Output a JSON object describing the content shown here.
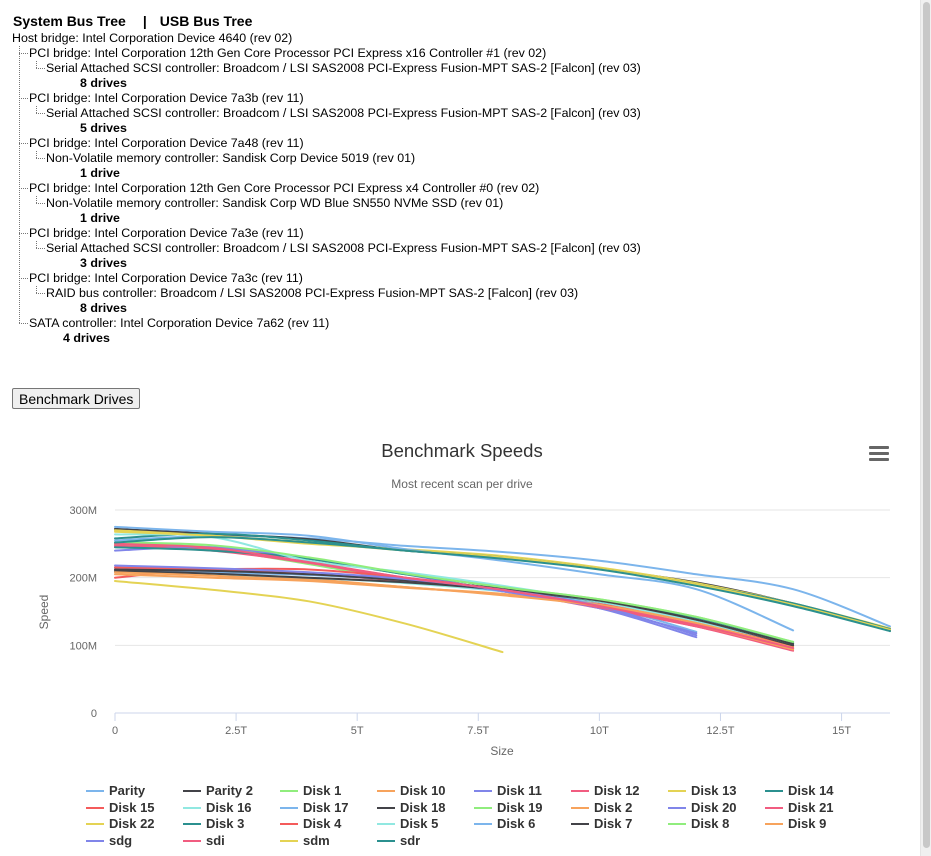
{
  "header": {
    "system_tab": "System Bus Tree",
    "separator": "|",
    "usb_tab": "USB Bus Tree"
  },
  "tree": [
    {
      "depth": 0,
      "type": "node",
      "text": "Host bridge: Intel Corporation Device 4640 (rev 02)"
    },
    {
      "depth": 1,
      "type": "node",
      "text": "PCI bridge: Intel Corporation 12th Gen Core Processor PCI Express x16 Controller #1 (rev 02)"
    },
    {
      "depth": 2,
      "type": "node",
      "text": "Serial Attached SCSI controller: Broadcom / LSI SAS2008 PCI-Express Fusion-MPT SAS-2 [Falcon] (rev 03)"
    },
    {
      "depth": 3,
      "type": "drives",
      "text": "8 drives"
    },
    {
      "depth": 1,
      "type": "node",
      "text": "PCI bridge: Intel Corporation Device 7a3b (rev 11)"
    },
    {
      "depth": 2,
      "type": "node",
      "text": "Serial Attached SCSI controller: Broadcom / LSI SAS2008 PCI-Express Fusion-MPT SAS-2 [Falcon] (rev 03)"
    },
    {
      "depth": 3,
      "type": "drives",
      "text": "5 drives"
    },
    {
      "depth": 1,
      "type": "node",
      "text": "PCI bridge: Intel Corporation Device 7a48 (rev 11)"
    },
    {
      "depth": 2,
      "type": "node",
      "text": "Non-Volatile memory controller: Sandisk Corp Device 5019 (rev 01)"
    },
    {
      "depth": 3,
      "type": "drives",
      "text": "1 drive"
    },
    {
      "depth": 1,
      "type": "node",
      "text": "PCI bridge: Intel Corporation 12th Gen Core Processor PCI Express x4 Controller #0 (rev 02)"
    },
    {
      "depth": 2,
      "type": "node",
      "text": "Non-Volatile memory controller: Sandisk Corp WD Blue SN550 NVMe SSD (rev 01)"
    },
    {
      "depth": 3,
      "type": "drives",
      "text": "1 drive"
    },
    {
      "depth": 1,
      "type": "node",
      "text": "PCI bridge: Intel Corporation Device 7a3e (rev 11)"
    },
    {
      "depth": 2,
      "type": "node",
      "text": "Serial Attached SCSI controller: Broadcom / LSI SAS2008 PCI-Express Fusion-MPT SAS-2 [Falcon] (rev 03)"
    },
    {
      "depth": 3,
      "type": "drives",
      "text": "3 drives"
    },
    {
      "depth": 1,
      "type": "node",
      "text": "PCI bridge: Intel Corporation Device 7a3c (rev 11)"
    },
    {
      "depth": 2,
      "type": "node",
      "text": "RAID bus controller: Broadcom / LSI SAS2008 PCI-Express Fusion-MPT SAS-2 [Falcon] (rev 03)"
    },
    {
      "depth": 3,
      "type": "drives",
      "text": "8 drives"
    },
    {
      "depth": 1,
      "type": "node",
      "text": "SATA controller: Intel Corporation Device 7a62 (rev 11)"
    },
    {
      "depth": 2,
      "type": "drives",
      "text": "4 drives"
    }
  ],
  "button": {
    "label": "Benchmark Drives"
  },
  "chart_data": {
    "type": "line",
    "title": "Benchmark Speeds",
    "subtitle": "Most recent scan per drive",
    "xlabel": "Size",
    "ylabel": "Speed",
    "xlim": [
      0,
      16
    ],
    "ylim": [
      0,
      300
    ],
    "xticks": [
      {
        "v": 0,
        "label": "0"
      },
      {
        "v": 2.5,
        "label": "2.5T"
      },
      {
        "v": 5,
        "label": "5T"
      },
      {
        "v": 7.5,
        "label": "7.5T"
      },
      {
        "v": 10,
        "label": "10T"
      },
      {
        "v": 12.5,
        "label": "12.5T"
      },
      {
        "v": 15,
        "label": "15T"
      }
    ],
    "yticks": [
      {
        "v": 0,
        "label": "0"
      },
      {
        "v": 100,
        "label": "100M"
      },
      {
        "v": 200,
        "label": "200M"
      },
      {
        "v": 300,
        "label": "300M"
      }
    ],
    "grid": "horizontal",
    "legend_position": "bottom",
    "series": [
      {
        "name": "Parity",
        "color": "#7cb5ec",
        "x": [
          0,
          2,
          4,
          6,
          8,
          10,
          12,
          14,
          16
        ],
        "y": [
          255,
          262,
          258,
          247,
          238,
          225,
          205,
          183,
          128
        ]
      },
      {
        "name": "Parity 2",
        "color": "#434348",
        "x": [
          0,
          2,
          4,
          6,
          8,
          10,
          12,
          14,
          16
        ],
        "y": [
          272,
          265,
          257,
          240,
          230,
          213,
          193,
          162,
          122
        ]
      },
      {
        "name": "Disk 1",
        "color": "#90ed7d",
        "x": [
          0,
          2,
          4,
          6,
          8,
          10,
          12,
          14
        ],
        "y": [
          250,
          242,
          220,
          196,
          182,
          162,
          140,
          105
        ]
      },
      {
        "name": "Disk 10",
        "color": "#f7a35c",
        "x": [
          0,
          2,
          4,
          6,
          8,
          10,
          12,
          14
        ],
        "y": [
          212,
          205,
          198,
          186,
          175,
          160,
          135,
          98
        ]
      },
      {
        "name": "Disk 11",
        "color": "#8085e9",
        "x": [
          0,
          2,
          4,
          6,
          8,
          10,
          12
        ],
        "y": [
          215,
          212,
          205,
          196,
          180,
          155,
          112
        ]
      },
      {
        "name": "Disk 12",
        "color": "#f15c80",
        "x": [
          0,
          2,
          4,
          6,
          8,
          10,
          12,
          14
        ],
        "y": [
          248,
          243,
          222,
          198,
          180,
          155,
          128,
          95
        ]
      },
      {
        "name": "Disk 13",
        "color": "#e4d354",
        "x": [
          0,
          2,
          4,
          6,
          8,
          10,
          12,
          14,
          16
        ],
        "y": [
          270,
          262,
          250,
          242,
          232,
          215,
          192,
          162,
          125
        ]
      },
      {
        "name": "Disk 14",
        "color": "#2b908f",
        "x": [
          0,
          2,
          4,
          6,
          8,
          10,
          12,
          14,
          16
        ],
        "y": [
          258,
          265,
          255,
          240,
          230,
          213,
          190,
          162,
          124
        ]
      },
      {
        "name": "Disk 15",
        "color": "#f45b5b",
        "x": [
          0,
          2,
          4,
          6,
          8,
          10,
          12,
          14
        ],
        "y": [
          200,
          212,
          205,
          195,
          183,
          162,
          135,
          100
        ]
      },
      {
        "name": "Disk 16",
        "color": "#91e8e1",
        "x": [
          0,
          2,
          4,
          6,
          8,
          10,
          12,
          14
        ],
        "y": [
          208,
          205,
          200,
          192,
          180,
          164,
          135,
          102
        ]
      },
      {
        "name": "Disk 17",
        "color": "#7cb5ec",
        "x": [
          0,
          2,
          4,
          6,
          8,
          10,
          12
        ],
        "y": [
          212,
          208,
          204,
          196,
          180,
          160,
          120
        ]
      },
      {
        "name": "Disk 18",
        "color": "#434348",
        "x": [
          0,
          2,
          4,
          6,
          8,
          10,
          12,
          14
        ],
        "y": [
          210,
          206,
          200,
          193,
          182,
          165,
          138,
          100
        ]
      },
      {
        "name": "Disk 19",
        "color": "#90ed7d",
        "x": [
          0,
          2,
          4,
          6,
          8,
          10,
          12,
          14
        ],
        "y": [
          250,
          245,
          228,
          205,
          186,
          168,
          142,
          104
        ]
      },
      {
        "name": "Disk 2",
        "color": "#f7a35c",
        "x": [
          0,
          2,
          4,
          6,
          8,
          10,
          12,
          14
        ],
        "y": [
          205,
          200,
          195,
          185,
          176,
          160,
          133,
          96
        ]
      },
      {
        "name": "Disk 20",
        "color": "#8085e9",
        "x": [
          0,
          2,
          4,
          6,
          8,
          10,
          12
        ],
        "y": [
          240,
          245,
          228,
          205,
          180,
          155,
          118
        ]
      },
      {
        "name": "Disk 21",
        "color": "#f15c80",
        "x": [
          0,
          2,
          4,
          6,
          8,
          10,
          12,
          14
        ],
        "y": [
          246,
          240,
          222,
          200,
          182,
          156,
          128,
          92
        ]
      },
      {
        "name": "Disk 22",
        "color": "#e4d354",
        "x": [
          0,
          2,
          4,
          6,
          8
        ],
        "y": [
          195,
          182,
          165,
          132,
          90
        ]
      },
      {
        "name": "Disk 3",
        "color": "#2b908f",
        "x": [
          0,
          2,
          4,
          6,
          8,
          10,
          12,
          14
        ],
        "y": [
          245,
          240,
          228,
          205,
          186,
          165,
          140,
          103
        ]
      },
      {
        "name": "Disk 4",
        "color": "#f45b5b",
        "x": [
          0,
          2,
          4,
          6,
          8,
          10,
          12,
          14
        ],
        "y": [
          215,
          213,
          212,
          200,
          182,
          158,
          130,
          95
        ]
      },
      {
        "name": "Disk 5",
        "color": "#91e8e1",
        "x": [
          0,
          2,
          4,
          6,
          8,
          10,
          12,
          14
        ],
        "y": [
          264,
          260,
          225,
          208,
          188,
          165,
          138,
          102
        ]
      },
      {
        "name": "Disk 6",
        "color": "#7cb5ec",
        "x": [
          0,
          2,
          4,
          6,
          8,
          10,
          12,
          14
        ],
        "y": [
          275,
          268,
          262,
          242,
          225,
          205,
          183,
          122
        ]
      },
      {
        "name": "Disk 7",
        "color": "#434348",
        "x": [
          0,
          2,
          4,
          6,
          8,
          10,
          12,
          14
        ],
        "y": [
          212,
          210,
          205,
          196,
          184,
          166,
          138,
          102
        ]
      },
      {
        "name": "Disk 8",
        "color": "#90ed7d",
        "x": [
          0,
          2,
          4,
          6,
          8,
          10,
          12,
          14
        ],
        "y": [
          252,
          248,
          230,
          206,
          186,
          168,
          142,
          105
        ]
      },
      {
        "name": "Disk 9",
        "color": "#f7a35c",
        "x": [
          0,
          2,
          4,
          6,
          8,
          10,
          12,
          14
        ],
        "y": [
          208,
          203,
          196,
          186,
          174,
          158,
          130,
          94
        ]
      },
      {
        "name": "sdg",
        "color": "#8085e9",
        "x": [
          0,
          2,
          4,
          6,
          8,
          10,
          12
        ],
        "y": [
          218,
          214,
          208,
          198,
          182,
          158,
          115
        ]
      },
      {
        "name": "sdi",
        "color": "#f15c80",
        "x": [
          0,
          2,
          4,
          6,
          8,
          10,
          12,
          14
        ],
        "y": [
          250,
          244,
          223,
          200,
          182,
          158,
          130,
          96
        ]
      },
      {
        "name": "sdm",
        "color": "#e4d354",
        "x": [
          0,
          2,
          4,
          6,
          8,
          10,
          12,
          14,
          16
        ],
        "y": [
          268,
          262,
          252,
          240,
          230,
          213,
          190,
          160,
          123
        ]
      },
      {
        "name": "sdr",
        "color": "#2b908f",
        "x": [
          0,
          2,
          4,
          6,
          8,
          10,
          12,
          14,
          16
        ],
        "y": [
          252,
          260,
          252,
          240,
          228,
          212,
          188,
          158,
          121
        ]
      }
    ]
  }
}
